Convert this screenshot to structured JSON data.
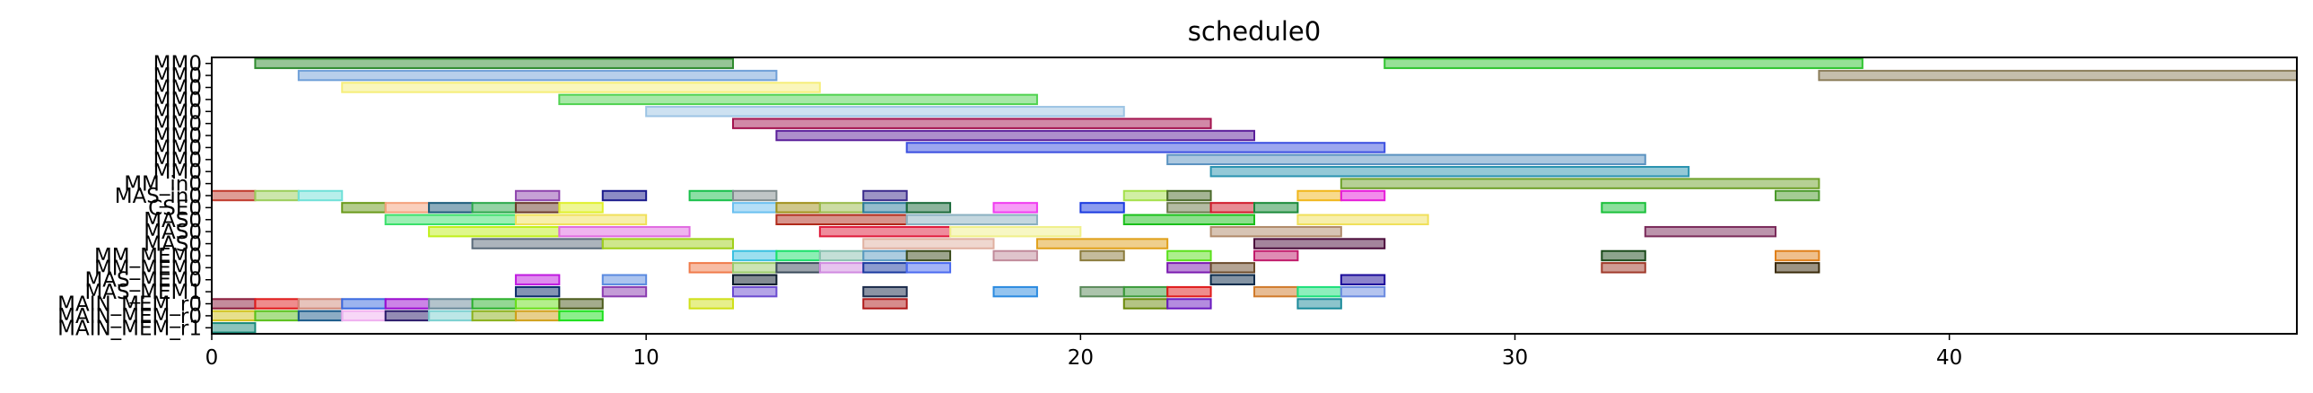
{
  "chart_data": {
    "type": "gantt",
    "title": "schedule0",
    "xlabel": "",
    "ylabel": "",
    "xlim": [
      0,
      48
    ],
    "xticks": [
      0,
      10,
      20,
      30,
      40
    ],
    "grid": false,
    "rows": [
      "MM0",
      "MM0",
      "MM0",
      "MM0",
      "MM0",
      "MM0",
      "MM0",
      "MM0",
      "MM0",
      "MM0",
      "MM_in0",
      "MAS_in0",
      "CSE0",
      "MAS0",
      "MAS0",
      "MAS0",
      "MM_MEM0",
      "MM_MEM0",
      "MAS_MEM0",
      "MAS_MEM1",
      "MAIN_MEM_r0",
      "MAIN_MEM_r0",
      "MAIN_MEM_r1"
    ],
    "tasks": [
      {
        "row": 0,
        "start": 1,
        "end": 12,
        "color": "#2e8b2e"
      },
      {
        "row": 0,
        "start": 27,
        "end": 38,
        "color": "#2ec42e"
      },
      {
        "row": 1,
        "start": 2,
        "end": 13,
        "color": "#6f9fd8"
      },
      {
        "row": 1,
        "start": 37,
        "end": 48,
        "color": "#8b7d5a"
      },
      {
        "row": 2,
        "start": 3,
        "end": 14,
        "color": "#f6ee7a"
      },
      {
        "row": 3,
        "start": 8,
        "end": 19,
        "color": "#4fd24f"
      },
      {
        "row": 4,
        "start": 10,
        "end": 21,
        "color": "#9cc4e4"
      },
      {
        "row": 5,
        "start": 12,
        "end": 23,
        "color": "#a3134f"
      },
      {
        "row": 6,
        "start": 13,
        "end": 24,
        "color": "#5b1f9a"
      },
      {
        "row": 7,
        "start": 16,
        "end": 27,
        "color": "#3a4fe0"
      },
      {
        "row": 8,
        "start": 22,
        "end": 33,
        "color": "#5a92c0"
      },
      {
        "row": 9,
        "start": 23,
        "end": 34,
        "color": "#2a93b0"
      },
      {
        "row": 10,
        "start": 26,
        "end": 37,
        "color": "#6ea12a"
      },
      {
        "row": 11,
        "start": 0,
        "end": 1,
        "color": "#c0392b"
      },
      {
        "row": 11,
        "start": 1,
        "end": 2,
        "color": "#9acd5a"
      },
      {
        "row": 11,
        "start": 2,
        "end": 3,
        "color": "#6fe0d8"
      },
      {
        "row": 11,
        "start": 7,
        "end": 8,
        "color": "#8e44ad"
      },
      {
        "row": 11,
        "start": 9,
        "end": 10,
        "color": "#1a1a8c"
      },
      {
        "row": 11,
        "start": 11,
        "end": 12,
        "color": "#18c04a"
      },
      {
        "row": 11,
        "start": 12,
        "end": 13,
        "color": "#7f8c8d"
      },
      {
        "row": 11,
        "start": 15,
        "end": 16,
        "color": "#3a2a8c"
      },
      {
        "row": 11,
        "start": 21,
        "end": 22,
        "color": "#a4e04a"
      },
      {
        "row": 11,
        "start": 22,
        "end": 23,
        "color": "#4a6a2a"
      },
      {
        "row": 11,
        "start": 25,
        "end": 26,
        "color": "#f1b61a"
      },
      {
        "row": 11,
        "start": 26,
        "end": 27,
        "color": "#e61ad8"
      },
      {
        "row": 11,
        "start": 36,
        "end": 37,
        "color": "#4a9a2a"
      },
      {
        "row": 12,
        "start": 3,
        "end": 4,
        "color": "#6a9a1a"
      },
      {
        "row": 12,
        "start": 4,
        "end": 5,
        "color": "#f5a07a"
      },
      {
        "row": 12,
        "start": 5,
        "end": 6,
        "color": "#1a5a7a"
      },
      {
        "row": 12,
        "start": 6,
        "end": 7,
        "color": "#2aa84a"
      },
      {
        "row": 12,
        "start": 7,
        "end": 8,
        "color": "#6a3a2a"
      },
      {
        "row": 12,
        "start": 8,
        "end": 9,
        "color": "#e0f02a"
      },
      {
        "row": 12,
        "start": 12,
        "end": 13,
        "color": "#6ac0f0"
      },
      {
        "row": 12,
        "start": 13,
        "end": 14,
        "color": "#a0901a"
      },
      {
        "row": 12,
        "start": 14,
        "end": 15,
        "color": "#9aba4a"
      },
      {
        "row": 12,
        "start": 15,
        "end": 16,
        "color": "#2a7a9a"
      },
      {
        "row": 12,
        "start": 16,
        "end": 17,
        "color": "#1a6a3a"
      },
      {
        "row": 12,
        "start": 18,
        "end": 19,
        "color": "#f03af0"
      },
      {
        "row": 12,
        "start": 20,
        "end": 21,
        "color": "#1a3ae0"
      },
      {
        "row": 12,
        "start": 22,
        "end": 23,
        "color": "#6a7a4a"
      },
      {
        "row": 12,
        "start": 23,
        "end": 24,
        "color": "#d01a2a"
      },
      {
        "row": 12,
        "start": 24,
        "end": 25,
        "color": "#1a8a3a"
      },
      {
        "row": 12,
        "start": 32,
        "end": 33,
        "color": "#1ac03a"
      },
      {
        "row": 13,
        "start": 4,
        "end": 7,
        "color": "#3ae06a"
      },
      {
        "row": 13,
        "start": 7,
        "end": 10,
        "color": "#f0e05a"
      },
      {
        "row": 13,
        "start": 13,
        "end": 16,
        "color": "#b02a1a"
      },
      {
        "row": 13,
        "start": 16,
        "end": 19,
        "color": "#8ab0c0"
      },
      {
        "row": 13,
        "start": 21,
        "end": 24,
        "color": "#1ac01a"
      },
      {
        "row": 13,
        "start": 25,
        "end": 28,
        "color": "#f0e05a"
      },
      {
        "row": 14,
        "start": 5,
        "end": 8,
        "color": "#c0f01a"
      },
      {
        "row": 14,
        "start": 8,
        "end": 11,
        "color": "#e06ae0"
      },
      {
        "row": 14,
        "start": 14,
        "end": 17,
        "color": "#e01a3a"
      },
      {
        "row": 14,
        "start": 17,
        "end": 20,
        "color": "#f0f08a"
      },
      {
        "row": 14,
        "start": 23,
        "end": 26,
        "color": "#b08a6a"
      },
      {
        "row": 14,
        "start": 33,
        "end": 36,
        "color": "#7a2a5a"
      },
      {
        "row": 15,
        "start": 6,
        "end": 9,
        "color": "#5a6a7a"
      },
      {
        "row": 15,
        "start": 9,
        "end": 12,
        "color": "#a0d01a"
      },
      {
        "row": 15,
        "start": 15,
        "end": 18,
        "color": "#e0b0a0"
      },
      {
        "row": 15,
        "start": 19,
        "end": 22,
        "color": "#e0a01a"
      },
      {
        "row": 15,
        "start": 24,
        "end": 27,
        "color": "#4a0a3a"
      },
      {
        "row": 16,
        "start": 12,
        "end": 13,
        "color": "#3ac0e0"
      },
      {
        "row": 16,
        "start": 13,
        "end": 14,
        "color": "#1ae06a"
      },
      {
        "row": 16,
        "start": 14,
        "end": 15,
        "color": "#8ac0b0"
      },
      {
        "row": 16,
        "start": 15,
        "end": 16,
        "color": "#5a9ac0"
      },
      {
        "row": 16,
        "start": 16,
        "end": 17,
        "color": "#3a4a1a"
      },
      {
        "row": 16,
        "start": 18,
        "end": 19,
        "color": "#c08a9a"
      },
      {
        "row": 16,
        "start": 20,
        "end": 21,
        "color": "#8a7a3a"
      },
      {
        "row": 16,
        "start": 22,
        "end": 23,
        "color": "#5ae01a"
      },
      {
        "row": 16,
        "start": 24,
        "end": 25,
        "color": "#c01a6a"
      },
      {
        "row": 16,
        "start": 32,
        "end": 33,
        "color": "#1a4a1a"
      },
      {
        "row": 16,
        "start": 36,
        "end": 37,
        "color": "#e0801a"
      },
      {
        "row": 17,
        "start": 11,
        "end": 12,
        "color": "#f07a4a"
      },
      {
        "row": 17,
        "start": 12,
        "end": 13,
        "color": "#9aca6a"
      },
      {
        "row": 17,
        "start": 13,
        "end": 14,
        "color": "#3a4a5a"
      },
      {
        "row": 17,
        "start": 14,
        "end": 15,
        "color": "#d08ae0"
      },
      {
        "row": 17,
        "start": 15,
        "end": 16,
        "color": "#1a3aa0"
      },
      {
        "row": 17,
        "start": 16,
        "end": 17,
        "color": "#4a6af0"
      },
      {
        "row": 17,
        "start": 22,
        "end": 23,
        "color": "#7a1ab0"
      },
      {
        "row": 17,
        "start": 23,
        "end": 24,
        "color": "#6a4a2a"
      },
      {
        "row": 17,
        "start": 32,
        "end": 33,
        "color": "#a03a2a"
      },
      {
        "row": 17,
        "start": 36,
        "end": 37,
        "color": "#3a2a0a"
      },
      {
        "row": 18,
        "start": 7,
        "end": 8,
        "color": "#c01ae0"
      },
      {
        "row": 18,
        "start": 9,
        "end": 10,
        "color": "#5a8ae0"
      },
      {
        "row": 18,
        "start": 12,
        "end": 13,
        "color": "#0a1a2a"
      },
      {
        "row": 18,
        "start": 23,
        "end": 24,
        "color": "#0a2a4a"
      },
      {
        "row": 18,
        "start": 26,
        "end": 27,
        "color": "#1a0a9a"
      },
      {
        "row": 19,
        "start": 7,
        "end": 8,
        "color": "#0a2a6a"
      },
      {
        "row": 19,
        "start": 9,
        "end": 10,
        "color": "#8a3ab0"
      },
      {
        "row": 19,
        "start": 12,
        "end": 13,
        "color": "#6a4ad0"
      },
      {
        "row": 19,
        "start": 15,
        "end": 16,
        "color": "#1a2a4a"
      },
      {
        "row": 19,
        "start": 18,
        "end": 19,
        "color": "#2a8ae0"
      },
      {
        "row": 19,
        "start": 20,
        "end": 21,
        "color": "#5a8a5a"
      },
      {
        "row": 19,
        "start": 21,
        "end": 22,
        "color": "#3a9a3a"
      },
      {
        "row": 19,
        "start": 22,
        "end": 23,
        "color": "#e01a1a"
      },
      {
        "row": 19,
        "start": 24,
        "end": 25,
        "color": "#d07a2a"
      },
      {
        "row": 19,
        "start": 25,
        "end": 26,
        "color": "#1ae07a"
      },
      {
        "row": 19,
        "start": 26,
        "end": 27,
        "color": "#6a8ae0"
      },
      {
        "row": 20,
        "start": 0,
        "end": 1,
        "color": "#8a1a3a"
      },
      {
        "row": 20,
        "start": 1,
        "end": 2,
        "color": "#e01a1a"
      },
      {
        "row": 20,
        "start": 2,
        "end": 3,
        "color": "#d08a7a"
      },
      {
        "row": 20,
        "start": 3,
        "end": 4,
        "color": "#3a6ae0"
      },
      {
        "row": 20,
        "start": 4,
        "end": 5,
        "color": "#9a0ad0"
      },
      {
        "row": 20,
        "start": 5,
        "end": 6,
        "color": "#6a8a9a"
      },
      {
        "row": 20,
        "start": 6,
        "end": 7,
        "color": "#2ab02a"
      },
      {
        "row": 20,
        "start": 7,
        "end": 8,
        "color": "#6ae01a"
      },
      {
        "row": 20,
        "start": 8,
        "end": 9,
        "color": "#4a5a1a"
      },
      {
        "row": 20,
        "start": 11,
        "end": 12,
        "color": "#d0e01a"
      },
      {
        "row": 20,
        "start": 15,
        "end": 16,
        "color": "#b01a1a"
      },
      {
        "row": 20,
        "start": 21,
        "end": 22,
        "color": "#6a8a0a"
      },
      {
        "row": 20,
        "start": 22,
        "end": 23,
        "color": "#6a1ac0"
      },
      {
        "row": 20,
        "start": 25,
        "end": 26,
        "color": "#1a8a9a"
      },
      {
        "row": 21,
        "start": 0,
        "end": 1,
        "color": "#d0c01a"
      },
      {
        "row": 21,
        "start": 1,
        "end": 2,
        "color": "#5ac01a"
      },
      {
        "row": 21,
        "start": 2,
        "end": 3,
        "color": "#1a5a8a"
      },
      {
        "row": 21,
        "start": 3,
        "end": 4,
        "color": "#f0b0f0"
      },
      {
        "row": 21,
        "start": 4,
        "end": 5,
        "color": "#2a1a6a"
      },
      {
        "row": 21,
        "start": 5,
        "end": 6,
        "color": "#7ad0d0"
      },
      {
        "row": 21,
        "start": 6,
        "end": 7,
        "color": "#8ab01a"
      },
      {
        "row": 21,
        "start": 7,
        "end": 8,
        "color": "#d0a01a"
      },
      {
        "row": 21,
        "start": 8,
        "end": 9,
        "color": "#1ae01a"
      },
      {
        "row": 22,
        "start": 0,
        "end": 1,
        "color": "#1a8a7a"
      }
    ]
  }
}
